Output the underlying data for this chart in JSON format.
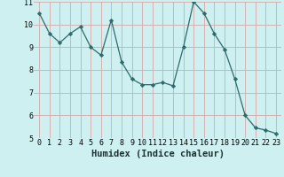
{
  "x": [
    0,
    1,
    2,
    3,
    4,
    5,
    6,
    7,
    8,
    9,
    10,
    11,
    12,
    13,
    14,
    15,
    16,
    17,
    18,
    19,
    20,
    21,
    22,
    23
  ],
  "y": [
    10.5,
    9.6,
    9.2,
    9.6,
    9.9,
    9.0,
    8.65,
    10.2,
    8.35,
    7.6,
    7.35,
    7.35,
    7.45,
    7.3,
    9.0,
    11.0,
    10.5,
    9.6,
    8.9,
    7.6,
    6.0,
    5.45,
    5.35,
    5.2
  ],
  "line_color": "#2e6b6b",
  "marker": "D",
  "marker_size": 2.2,
  "bg_color": "#cff0f0",
  "grid_color": "#d8a8a8",
  "xlabel": "Humidex (Indice chaleur)",
  "xlabel_fontsize": 7.5,
  "tick_fontsize": 6.0,
  "ylim": [
    5,
    11
  ],
  "xlim": [
    -0.5,
    23.5
  ],
  "yticks": [
    5,
    6,
    7,
    8,
    9,
    10,
    11
  ],
  "xticks": [
    0,
    1,
    2,
    3,
    4,
    5,
    6,
    7,
    8,
    9,
    10,
    11,
    12,
    13,
    14,
    15,
    16,
    17,
    18,
    19,
    20,
    21,
    22,
    23
  ]
}
